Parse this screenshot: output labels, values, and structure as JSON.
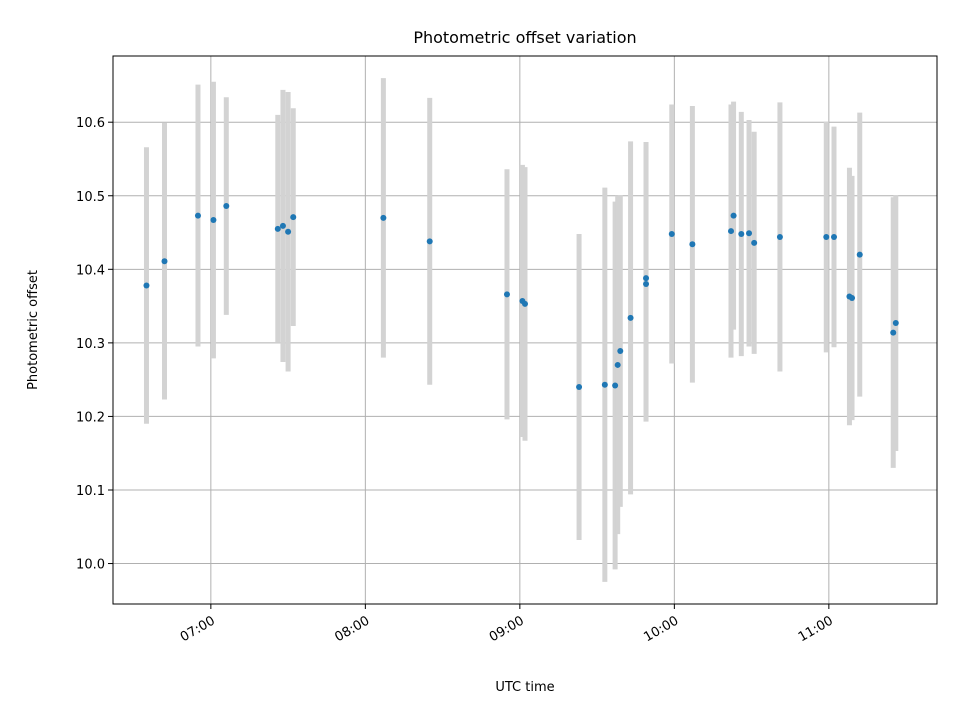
{
  "chart_data": {
    "type": "scatter",
    "title": "Photometric offset variation",
    "xlabel": "UTC time",
    "ylabel": "Photometric offset",
    "grid": true,
    "x_ticks": [
      "07:00",
      "08:00",
      "09:00",
      "10:00",
      "11:00"
    ],
    "y_ticks": [
      10.0,
      10.1,
      10.2,
      10.3,
      10.4,
      10.5,
      10.6
    ],
    "xlim": [
      "06:22",
      "11:42"
    ],
    "ylim": [
      9.945,
      10.69
    ],
    "colors": {
      "marker": "#1f77b4",
      "errorbar": "#d3d3d3"
    },
    "points": [
      {
        "x": "06:35",
        "y": 10.378,
        "yerr": 0.188
      },
      {
        "x": "06:42",
        "y": 10.411,
        "yerr": 0.188
      },
      {
        "x": "06:55",
        "y": 10.473,
        "yerr": 0.178
      },
      {
        "x": "07:01",
        "y": 10.467,
        "yerr": 0.188
      },
      {
        "x": "07:06",
        "y": 10.486,
        "yerr": 0.148
      },
      {
        "x": "07:26",
        "y": 10.455,
        "yerr": 0.155
      },
      {
        "x": "07:28",
        "y": 10.459,
        "yerr": 0.185
      },
      {
        "x": "07:30",
        "y": 10.451,
        "yerr": 0.19
      },
      {
        "x": "07:32",
        "y": 10.471,
        "yerr": 0.148
      },
      {
        "x": "08:07",
        "y": 10.47,
        "yerr": 0.19
      },
      {
        "x": "08:25",
        "y": 10.438,
        "yerr": 0.195
      },
      {
        "x": "08:55",
        "y": 10.366,
        "yerr": 0.17
      },
      {
        "x": "09:01",
        "y": 10.357,
        "yerr": 0.185
      },
      {
        "x": "09:02",
        "y": 10.353,
        "yerr": 0.186
      },
      {
        "x": "09:23",
        "y": 10.24,
        "yerr": 0.208
      },
      {
        "x": "09:33",
        "y": 10.243,
        "yerr": 0.268
      },
      {
        "x": "09:37",
        "y": 10.242,
        "yerr": 0.25
      },
      {
        "x": "09:38",
        "y": 10.27,
        "yerr": 0.23
      },
      {
        "x": "09:39",
        "y": 10.289,
        "yerr": 0.212
      },
      {
        "x": "09:43",
        "y": 10.334,
        "yerr": 0.24
      },
      {
        "x": "09:49",
        "y": 10.388,
        "yerr": 0.185
      },
      {
        "x": "09:49",
        "y": 10.38,
        "yerr": 0.187
      },
      {
        "x": "09:59",
        "y": 10.448,
        "yerr": 0.176
      },
      {
        "x": "10:07",
        "y": 10.434,
        "yerr": 0.188
      },
      {
        "x": "10:22",
        "y": 10.452,
        "yerr": 0.172
      },
      {
        "x": "10:23",
        "y": 10.473,
        "yerr": 0.155
      },
      {
        "x": "10:26",
        "y": 10.448,
        "yerr": 0.166
      },
      {
        "x": "10:29",
        "y": 10.449,
        "yerr": 0.154
      },
      {
        "x": "10:31",
        "y": 10.436,
        "yerr": 0.151
      },
      {
        "x": "10:41",
        "y": 10.444,
        "yerr": 0.183
      },
      {
        "x": "10:59",
        "y": 10.444,
        "yerr": 0.157
      },
      {
        "x": "11:02",
        "y": 10.444,
        "yerr": 0.15
      },
      {
        "x": "11:08",
        "y": 10.363,
        "yerr": 0.175
      },
      {
        "x": "11:09",
        "y": 10.361,
        "yerr": 0.166
      },
      {
        "x": "11:12",
        "y": 10.42,
        "yerr": 0.193
      },
      {
        "x": "11:25",
        "y": 10.314,
        "yerr": 0.184
      },
      {
        "x": "11:26",
        "y": 10.327,
        "yerr": 0.174
      }
    ]
  }
}
